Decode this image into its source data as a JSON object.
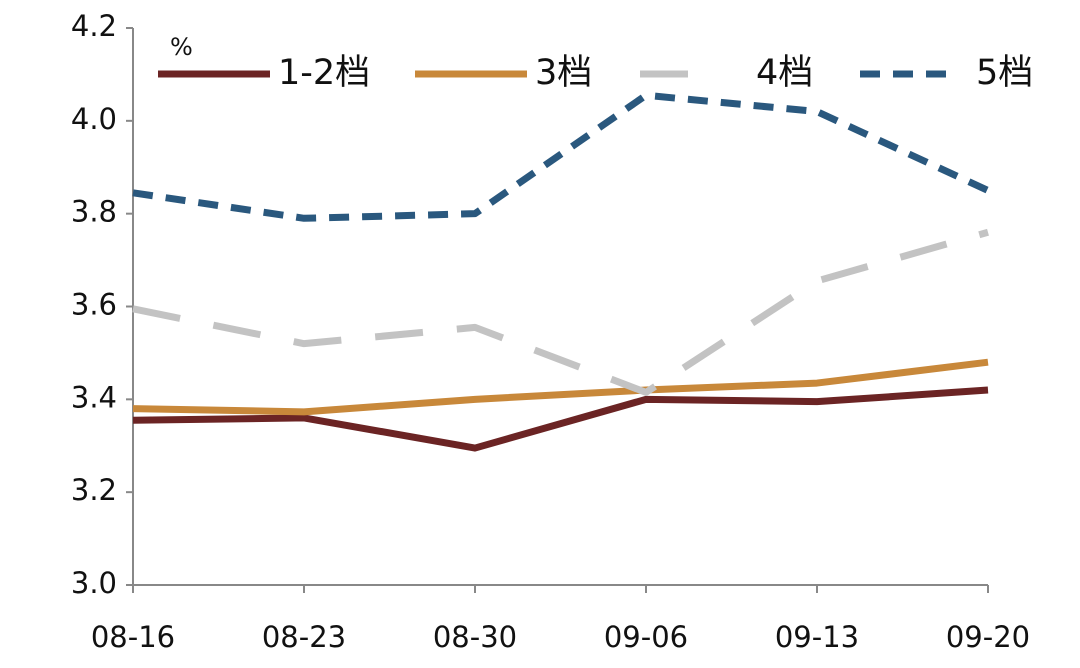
{
  "chart_data": {
    "type": "line",
    "unit": "%",
    "categories": [
      "08-16",
      "08-23",
      "08-30",
      "09-06",
      "09-13",
      "09-20"
    ],
    "series": [
      {
        "name": "1-2档",
        "color": "#6b2424",
        "dash": "solid",
        "values": [
          3.355,
          3.36,
          3.295,
          3.4,
          3.395,
          3.42
        ]
      },
      {
        "name": "3档",
        "color": "#c8883a",
        "dash": "solid",
        "values": [
          3.38,
          3.373,
          3.4,
          3.42,
          3.435,
          3.48
        ]
      },
      {
        "name": "4档",
        "color": "#c3c3c3",
        "dash": "long",
        "values": [
          3.595,
          3.52,
          3.555,
          3.415,
          3.655,
          3.76
        ]
      },
      {
        "name": "5档",
        "color": "#2a587e",
        "dash": "short",
        "values": [
          3.845,
          3.79,
          3.8,
          4.055,
          4.02,
          3.85
        ]
      }
    ],
    "ylim": [
      3.0,
      4.2
    ],
    "yticks": [
      {
        "value": 3.0,
        "label": "3.0"
      },
      3.2,
      3.4,
      3.6,
      3.8,
      {
        "value": 4.0,
        "label": "4.0"
      },
      4.2
    ],
    "legend": "top",
    "grid": false
  }
}
